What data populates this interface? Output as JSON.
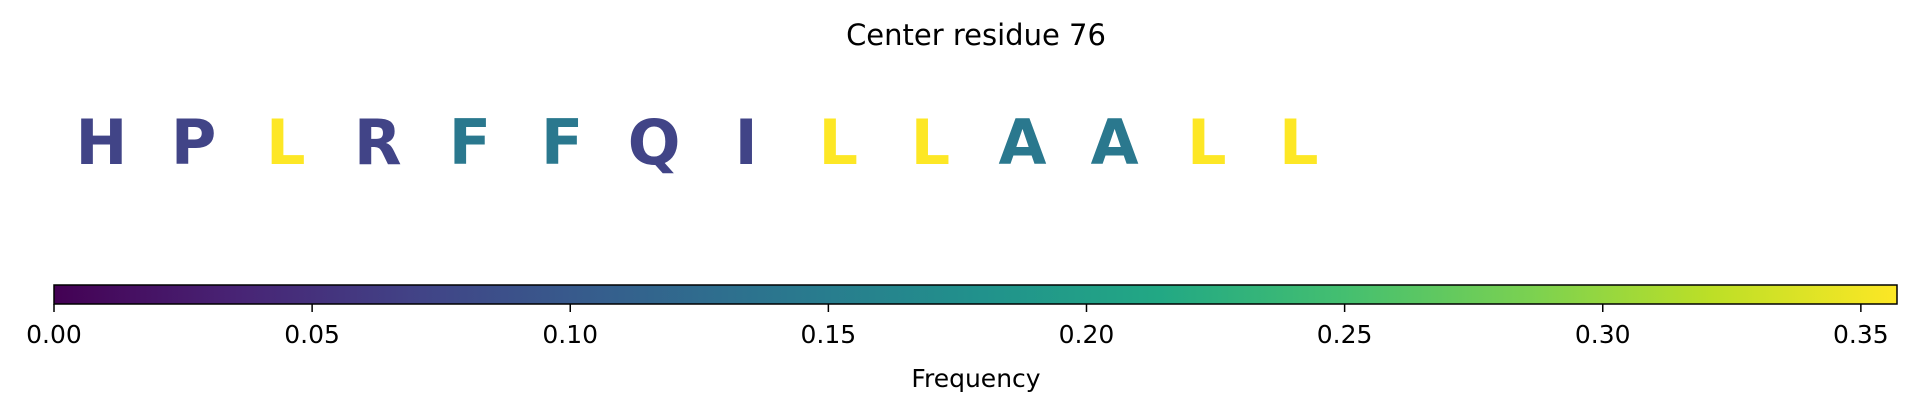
{
  "chart_data": {
    "type": "colored-sequence",
    "title": "Center residue 76",
    "categories": [
      "H",
      "P",
      "L",
      "R",
      "F",
      "F",
      "Q",
      "I",
      "L",
      "L",
      "A",
      "A",
      "L",
      "L"
    ],
    "values": [
      0.071,
      0.071,
      0.357,
      0.071,
      0.143,
      0.143,
      0.071,
      0.071,
      0.357,
      0.357,
      0.143,
      0.143,
      0.357,
      0.357
    ],
    "colormap": "viridis",
    "xlabel": "Frequency",
    "xlim": [
      0,
      0.357
    ],
    "xticks": [
      {
        "value": 0,
        "label": "0.00"
      },
      {
        "value": 0.05,
        "label": "0.05"
      },
      {
        "value": 0.1,
        "label": "0.10"
      },
      {
        "value": 0.15,
        "label": "0.15"
      },
      {
        "value": 0.2,
        "label": "0.20"
      },
      {
        "value": 0.25,
        "label": "0.25"
      },
      {
        "value": 0.3,
        "label": "0.30"
      },
      {
        "value": 0.35,
        "label": "0.35"
      }
    ]
  }
}
